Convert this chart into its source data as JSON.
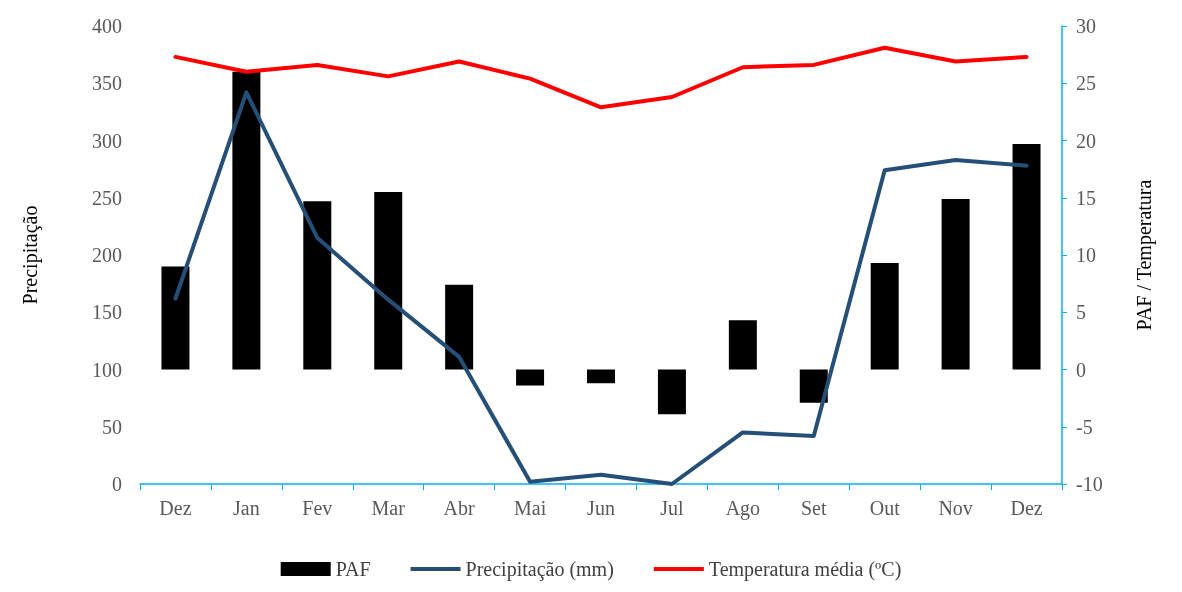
{
  "chart_data": {
    "type": "bar",
    "ylabel": "Precipitação",
    "y2label": "PAF / Temperatura",
    "categories": [
      "Dez",
      "Jan",
      "Fev",
      "Mar",
      "Abr",
      "Mai",
      "Jun",
      "Jul",
      "Ago",
      "Set",
      "Out",
      "Nov",
      "Dez"
    ],
    "series": [
      {
        "name": "PAF",
        "axis": "y2",
        "color": "#000000",
        "values": [
          9.0,
          26.0,
          14.7,
          15.5,
          7.4,
          -1.4,
          -1.2,
          -3.9,
          4.3,
          -2.9,
          9.3,
          14.9,
          19.7
        ]
      },
      {
        "name": "Precipitação (mm)",
        "type": "line",
        "color": "#264f78",
        "values": [
          162,
          342,
          215,
          161,
          111,
          2,
          8,
          0,
          45,
          42,
          274,
          283,
          278
        ]
      },
      {
        "name": "Temperatura média (ºC)",
        "type": "line",
        "axis": "y2",
        "color": "#ff0000",
        "values": [
          27.3,
          26.0,
          26.6,
          25.6,
          26.9,
          25.4,
          22.9,
          23.8,
          26.4,
          26.6,
          28.1,
          26.9,
          27.3
        ]
      }
    ],
    "ylim": [
      0,
      400
    ],
    "yticks": [
      0,
      50,
      100,
      150,
      200,
      250,
      300,
      350,
      400
    ],
    "y2lim": [
      -10,
      30
    ],
    "y2ticks": [
      -10,
      -5,
      0,
      5,
      10,
      15,
      20,
      25,
      30
    ],
    "grid": false,
    "legend": "bottom",
    "marker": "none",
    "line_style": "solid"
  }
}
